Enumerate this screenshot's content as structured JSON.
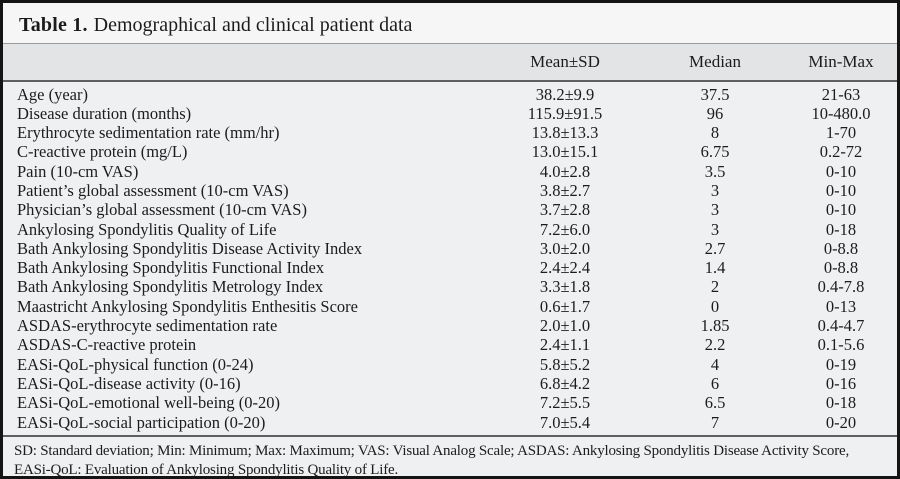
{
  "title": {
    "label": "Table 1.",
    "caption": "Demographical and clinical patient data"
  },
  "columns": {
    "mean_sd": "Mean±SD",
    "median": "Median",
    "min_max": "Min-Max"
  },
  "rows": [
    {
      "label": "Age (year)",
      "mean_sd": "38.2±9.9",
      "median": "37.5",
      "min_max": "21-63"
    },
    {
      "label": "Disease duration (months)",
      "mean_sd": "115.9±91.5",
      "median": "96",
      "min_max": "10-480.0"
    },
    {
      "label": "Erythrocyte sedimentation rate (mm/hr)",
      "mean_sd": "13.8±13.3",
      "median": "8",
      "min_max": "1-70"
    },
    {
      "label": "C-reactive protein (mg/L)",
      "mean_sd": "13.0±15.1",
      "median": "6.75",
      "min_max": "0.2-72"
    },
    {
      "label": "Pain (10-cm VAS)",
      "mean_sd": "4.0±2.8",
      "median": "3.5",
      "min_max": "0-10"
    },
    {
      "label": "Patient’s global assessment (10-cm VAS)",
      "mean_sd": "3.8±2.7",
      "median": "3",
      "min_max": "0-10"
    },
    {
      "label": "Physician’s global assessment (10-cm VAS)",
      "mean_sd": "3.7±2.8",
      "median": "3",
      "min_max": "0-10"
    },
    {
      "label": "Ankylosing Spondylitis Quality of Life",
      "mean_sd": "7.2±6.0",
      "median": "3",
      "min_max": "0-18"
    },
    {
      "label": "Bath Ankylosing Spondylitis Disease Activity Index",
      "mean_sd": "3.0±2.0",
      "median": "2.7",
      "min_max": "0-8.8"
    },
    {
      "label": "Bath Ankylosing Spondylitis Functional Index",
      "mean_sd": "2.4±2.4",
      "median": "1.4",
      "min_max": "0-8.8"
    },
    {
      "label": "Bath Ankylosing Spondylitis Metrology Index",
      "mean_sd": "3.3±1.8",
      "median": "2",
      "min_max": "0.4-7.8"
    },
    {
      "label": "Maastricht Ankylosing Spondylitis Enthesitis Score",
      "mean_sd": "0.6±1.7",
      "median": "0",
      "min_max": "0-13"
    },
    {
      "label": "ASDAS-erythrocyte sedimentation rate",
      "mean_sd": "2.0±1.0",
      "median": "1.85",
      "min_max": "0.4-4.7"
    },
    {
      "label": "ASDAS-C-reactive protein",
      "mean_sd": "2.4±1.1",
      "median": "2.2",
      "min_max": "0.1-5.6"
    },
    {
      "label": "EASi-QoL-physical function (0-24)",
      "mean_sd": "5.8±5.2",
      "median": "4",
      "min_max": "0-19"
    },
    {
      "label": "EASi-QoL-disease activity (0-16)",
      "mean_sd": "6.8±4.2",
      "median": "6",
      "min_max": "0-16"
    },
    {
      "label": "EASi-QoL-emotional well-being (0-20)",
      "mean_sd": "7.2±5.5",
      "median": "6.5",
      "min_max": "0-18"
    },
    {
      "label": "EASi-QoL-social participation (0-20)",
      "mean_sd": "7.0±5.4",
      "median": "7",
      "min_max": "0-20"
    }
  ],
  "footnote": {
    "line1": "SD: Standard deviation; Min: Minimum; Max: Maximum; VAS: Visual Analog Scale; ASDAS: Ankylosing Spondylitis Disease Activity Score,",
    "line2": "EASi-QoL: Evaluation of Ankylosing Spondylitis Quality of Life."
  },
  "colors": {
    "outer_border": "#141414",
    "title_bg": "#f6f6f7",
    "header_bg": "#e3e4e6",
    "body_bg": "#eff0f2",
    "rule_dark": "#606060",
    "rule_light": "#9a9a9a",
    "text": "#1c1c1c"
  }
}
